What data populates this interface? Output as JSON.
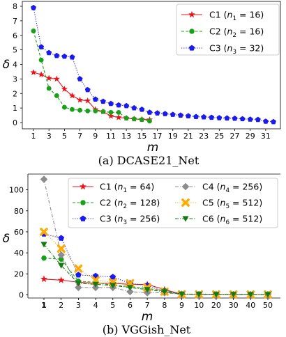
{
  "chart_data": [
    {
      "type": "line",
      "caption": "(a) DCASE21_Net",
      "xlabel": "m",
      "ylabel": "δ",
      "ylim": [
        0,
        8
      ],
      "xlim": [
        1,
        32
      ],
      "y_ticks": [
        "0",
        "1",
        "2",
        "3",
        "4",
        "5",
        "6",
        "7",
        "8"
      ],
      "x_ticks": [
        "1",
        "3",
        "5",
        "7",
        "9",
        "11",
        "13",
        "15",
        "17",
        "19",
        "21",
        "23",
        "25",
        "27",
        "29",
        "31"
      ],
      "grid": false,
      "legend_position": "top-right",
      "series": [
        {
          "name": "C1 (n1 = 16)",
          "legend_label": {
            "prefix": "C1 (",
            "var": "n",
            "sub": "1",
            "suffix": " = 16)"
          },
          "color": "#e8141c",
          "marker": "star",
          "linestyle": "solid",
          "x": [
            1,
            2,
            3,
            4,
            5,
            6,
            7,
            8,
            9,
            10,
            11,
            12,
            13,
            14,
            15,
            16
          ],
          "values": [
            3.45,
            3.3,
            3.05,
            3.0,
            2.3,
            1.85,
            1.55,
            1.5,
            0.9,
            0.75,
            0.45,
            0.35,
            0.3,
            0.25,
            0.22,
            0.2
          ]
        },
        {
          "name": "C2 (n2 = 16)",
          "legend_label": {
            "prefix": "C2 (",
            "var": "n",
            "sub": "2",
            "suffix": " = 16)"
          },
          "color": "#18a018",
          "marker": "circle",
          "linestyle": "dashed",
          "x": [
            1,
            2,
            3,
            4,
            5,
            6,
            7,
            8,
            9,
            10,
            11,
            12,
            13,
            14,
            15,
            16
          ],
          "values": [
            6.3,
            4.3,
            2.35,
            1.85,
            1.05,
            0.9,
            0.85,
            0.8,
            0.8,
            0.75,
            0.7,
            0.7,
            0.3,
            0.25,
            0.2,
            0.1
          ]
        },
        {
          "name": "C3 (n3 = 32)",
          "legend_label": {
            "prefix": "C3 (",
            "var": "n",
            "sub": "3",
            "suffix": " = 32)"
          },
          "color": "#1a1aee",
          "marker": "pentagon",
          "linestyle": "dotted",
          "x": [
            1,
            2,
            3,
            4,
            5,
            6,
            7,
            8,
            9,
            10,
            11,
            12,
            13,
            14,
            15,
            16,
            17,
            18,
            19,
            20,
            21,
            22,
            23,
            24,
            25,
            26,
            27,
            28,
            29,
            30,
            31,
            32
          ],
          "values": [
            7.9,
            5.2,
            4.8,
            4.6,
            4.55,
            4.5,
            3.0,
            2.25,
            1.6,
            1.45,
            1.3,
            1.2,
            1.15,
            1.0,
            0.9,
            0.7,
            0.65,
            0.6,
            0.55,
            0.5,
            0.45,
            0.4,
            0.38,
            0.35,
            0.32,
            0.3,
            0.28,
            0.25,
            0.22,
            0.2,
            0.08,
            0.05
          ]
        }
      ]
    },
    {
      "type": "line",
      "caption": "(b) VGGish_Net",
      "xlabel": "m",
      "ylabel": "δ",
      "ylim": [
        -3,
        115
      ],
      "y_ticks": [
        "0",
        "20",
        "40",
        "60",
        "80",
        "100"
      ],
      "categories": [
        "1",
        "2",
        "3",
        "4",
        "5",
        "6",
        "7",
        "8",
        "9",
        "10",
        "20",
        "30",
        "40",
        "50"
      ],
      "bold_categories": [
        "1"
      ],
      "grid": false,
      "legend_position": "top",
      "series": [
        {
          "name": "C1 (n1 = 64)",
          "legend_label": {
            "prefix": "C1 (",
            "var": "n",
            "sub": "1",
            "suffix": " = 64)"
          },
          "color": "#e8141c",
          "marker": "star",
          "linestyle": "solid",
          "values": [
            15,
            14,
            12,
            11,
            11,
            10,
            10,
            5,
            0.6,
            0.5,
            0.5,
            0.4,
            0.4,
            0.3
          ]
        },
        {
          "name": "C2 (n2 = 128)",
          "legend_label": {
            "prefix": "C2 (",
            "var": "n",
            "sub": "2",
            "suffix": " = 128)"
          },
          "color": "#18a018",
          "marker": "circle",
          "linestyle": "dashed",
          "values": [
            35,
            34,
            13,
            12,
            9,
            8,
            6,
            4,
            0.6,
            0.5,
            0.5,
            0.4,
            0.3,
            0.3
          ]
        },
        {
          "name": "C3 (n3 = 256)",
          "legend_label": {
            "prefix": "C3 (",
            "var": "n",
            "sub": "3",
            "suffix": " = 256)"
          },
          "color": "#1a1aee",
          "marker": "pentagon",
          "linestyle": "dotted",
          "values": [
            58,
            54,
            19,
            18,
            17,
            11,
            9,
            3,
            0.8,
            0.7,
            0.6,
            0.5,
            0.4,
            0.4
          ]
        },
        {
          "name": "C4 (n4 = 256)",
          "legend_label": {
            "prefix": "C4 (",
            "var": "n",
            "sub": "4",
            "suffix": " = 256)"
          },
          "color": "#8c8c8c",
          "marker": "diamond",
          "linestyle": "dashdot",
          "values": [
            110,
            38,
            7,
            7,
            7,
            3,
            2,
            2,
            0.5,
            0.4,
            0.4,
            0.3,
            0.3,
            0.3
          ]
        },
        {
          "name": "C5 (n5 = 512)",
          "legend_label": {
            "prefix": "C5 (",
            "var": "n",
            "sub": "5",
            "suffix": " = 512)"
          },
          "color": "#ffaa00",
          "marker": "x",
          "linestyle": "dotted",
          "values": [
            60,
            44,
            25,
            14,
            12,
            11,
            7,
            3,
            0.6,
            0.5,
            0.5,
            0.4,
            0.4,
            0.4
          ]
        },
        {
          "name": "C6 (n6 = 512)",
          "legend_label": {
            "prefix": "C6 (",
            "var": "n",
            "sub": "6",
            "suffix": " = 512)"
          },
          "color": "#157a15",
          "marker": "triangle-down",
          "linestyle": "dashdot",
          "values": [
            48,
            28,
            11,
            10,
            9,
            7,
            5,
            3,
            0.6,
            0.5,
            0.4,
            0.4,
            0.3,
            0.3
          ]
        }
      ]
    }
  ]
}
